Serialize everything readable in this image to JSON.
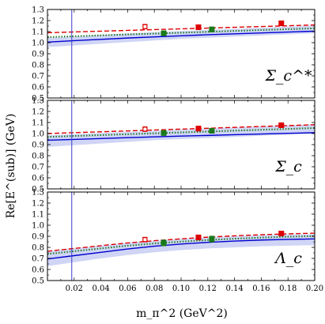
{
  "figure": {
    "ylabel": "Re[E^(sub)] (GeV)",
    "xlabel": "m_π^2 (GeV^2)",
    "colors": {
      "band": "#c8cef5",
      "solid_line": "#0000cc",
      "dashed_line": "#dd0000",
      "dotted_line": "#1a7a1a",
      "open_marker": "#dd0000",
      "red_marker": "#dd0000",
      "green_marker": "#1a7a1a",
      "vline": "#3a3acc"
    }
  },
  "chart_data": [
    {
      "type": "line",
      "panel_label": "Σ_c^*",
      "xlim": [
        0.0,
        0.2
      ],
      "ylim": [
        0.5,
        1.3
      ],
      "x_ticks": [],
      "y_ticks": [
        "0.5",
        "0.6",
        "0.7",
        "0.8",
        "0.9",
        "1.0",
        "1.1",
        "1.2",
        "1.3"
      ],
      "vline_x": 0.0182,
      "band": {
        "x": [
          0.0,
          0.02,
          0.04,
          0.06,
          0.08,
          0.1,
          0.12,
          0.14,
          0.16,
          0.18,
          0.2
        ],
        "lower": [
          0.96,
          0.975,
          0.99,
          1.005,
          1.02,
          1.035,
          1.045,
          1.055,
          1.065,
          1.075,
          1.085
        ],
        "upper": [
          1.045,
          1.055,
          1.07,
          1.085,
          1.095,
          1.105,
          1.115,
          1.125,
          1.135,
          1.145,
          1.155
        ]
      },
      "solid_line": {
        "x": [
          0.0,
          0.02,
          0.04,
          0.06,
          0.08,
          0.1,
          0.12,
          0.14,
          0.16,
          0.18,
          0.2
        ],
        "y": [
          1.005,
          1.018,
          1.03,
          1.042,
          1.052,
          1.062,
          1.072,
          1.08,
          1.088,
          1.096,
          1.104
        ]
      },
      "dashed_line": {
        "x": [
          0.0,
          0.02,
          0.04,
          0.06,
          0.08,
          0.1,
          0.12,
          0.14,
          0.16,
          0.18,
          0.2
        ],
        "y": [
          1.09,
          1.097,
          1.104,
          1.111,
          1.118,
          1.125,
          1.132,
          1.139,
          1.146,
          1.153,
          1.16
        ]
      },
      "dotted_line": {
        "x": [
          0.0,
          0.02,
          0.04,
          0.06,
          0.08,
          0.1,
          0.12,
          0.14,
          0.16,
          0.18,
          0.2
        ],
        "y": [
          1.05,
          1.058,
          1.066,
          1.074,
          1.082,
          1.09,
          1.098,
          1.106,
          1.114,
          1.122,
          1.13
        ]
      },
      "open_points": [
        {
          "x": 0.073,
          "y": 1.145,
          "err": 0.02
        }
      ],
      "red_points": [
        {
          "x": 0.113,
          "y": 1.14,
          "err": 0.02
        },
        {
          "x": 0.175,
          "y": 1.175,
          "err": 0.02
        }
      ],
      "green_points": [
        {
          "x": 0.087,
          "y": 1.085,
          "err": 0.02
        },
        {
          "x": 0.123,
          "y": 1.12,
          "err": 0.02
        }
      ]
    },
    {
      "type": "line",
      "panel_label": "Σ_c",
      "xlim": [
        0.0,
        0.2
      ],
      "ylim": [
        0.5,
        1.3
      ],
      "x_ticks": [],
      "y_ticks": [
        "0.5",
        "0.6",
        "0.7",
        "0.8",
        "0.9",
        "1.0",
        "1.1",
        "1.2",
        "1.3"
      ],
      "vline_x": 0.0182,
      "band": {
        "x": [
          0.0,
          0.02,
          0.04,
          0.06,
          0.08,
          0.1,
          0.12,
          0.14,
          0.16,
          0.18,
          0.2
        ],
        "lower": [
          0.88,
          0.895,
          0.91,
          0.925,
          0.94,
          0.95,
          0.96,
          0.97,
          0.98,
          0.99,
          1.0
        ],
        "upper": [
          0.985,
          0.995,
          1.005,
          1.015,
          1.025,
          1.035,
          1.045,
          1.055,
          1.065,
          1.075,
          1.085
        ]
      },
      "solid_line": {
        "x": [
          0.0,
          0.02,
          0.04,
          0.06,
          0.08,
          0.1,
          0.12,
          0.14,
          0.16,
          0.18,
          0.2
        ],
        "y": [
          0.94,
          0.947,
          0.955,
          0.963,
          0.97,
          0.977,
          0.983,
          0.99,
          0.996,
          1.002,
          1.008
        ]
      },
      "dashed_line": {
        "x": [
          0.0,
          0.02,
          0.04,
          0.06,
          0.08,
          0.1,
          0.12,
          0.14,
          0.16,
          0.18,
          0.2
        ],
        "y": [
          1.0,
          1.008,
          1.016,
          1.024,
          1.032,
          1.04,
          1.048,
          1.056,
          1.064,
          1.072,
          1.08
        ]
      },
      "dotted_line": {
        "x": [
          0.0,
          0.02,
          0.04,
          0.06,
          0.08,
          0.1,
          0.12,
          0.14,
          0.16,
          0.18,
          0.2
        ],
        "y": [
          0.97,
          0.978,
          0.986,
          0.994,
          1.002,
          1.01,
          1.018,
          1.026,
          1.034,
          1.042,
          1.05
        ]
      },
      "open_points": [
        {
          "x": 0.073,
          "y": 1.04,
          "err": 0.02
        }
      ],
      "red_points": [
        {
          "x": 0.113,
          "y": 1.045,
          "err": 0.02
        },
        {
          "x": 0.175,
          "y": 1.075,
          "err": 0.02
        }
      ],
      "green_points": [
        {
          "x": 0.087,
          "y": 1.005,
          "err": 0.02
        },
        {
          "x": 0.123,
          "y": 1.025,
          "err": 0.02
        }
      ]
    },
    {
      "type": "line",
      "panel_label": "Λ_c",
      "xlim": [
        0.0,
        0.2
      ],
      "ylim": [
        0.5,
        1.3
      ],
      "x_ticks": [
        "0.02",
        "0.04",
        "0.06",
        "0.08",
        "0.10",
        "0.12",
        "0.14",
        "0.16",
        "0.18",
        "0.20"
      ],
      "y_ticks": [
        "0.5",
        "0.6",
        "0.7",
        "0.8",
        "0.9",
        "1.0",
        "1.1",
        "1.2",
        "1.3"
      ],
      "vline_x": 0.0182,
      "band": {
        "x": [
          0.0,
          0.02,
          0.04,
          0.06,
          0.08,
          0.1,
          0.12,
          0.14,
          0.16,
          0.18,
          0.2
        ],
        "lower": [
          0.63,
          0.665,
          0.7,
          0.73,
          0.755,
          0.775,
          0.79,
          0.8,
          0.81,
          0.815,
          0.82
        ],
        "upper": [
          0.765,
          0.79,
          0.815,
          0.84,
          0.86,
          0.875,
          0.89,
          0.9,
          0.91,
          0.915,
          0.92
        ]
      },
      "solid_line": {
        "x": [
          0.0,
          0.02,
          0.04,
          0.06,
          0.08,
          0.1,
          0.12,
          0.14,
          0.16,
          0.18,
          0.2
        ],
        "y": [
          0.695,
          0.725,
          0.755,
          0.785,
          0.81,
          0.83,
          0.845,
          0.857,
          0.866,
          0.872,
          0.876
        ]
      },
      "dashed_line": {
        "x": [
          0.0,
          0.02,
          0.04,
          0.06,
          0.08,
          0.1,
          0.12,
          0.14,
          0.16,
          0.18,
          0.2
        ],
        "y": [
          0.765,
          0.79,
          0.815,
          0.84,
          0.86,
          0.877,
          0.892,
          0.904,
          0.914,
          0.922,
          0.928
        ]
      },
      "dotted_line": {
        "x": [
          0.0,
          0.02,
          0.04,
          0.06,
          0.08,
          0.1,
          0.12,
          0.14,
          0.16,
          0.18,
          0.2
        ],
        "y": [
          0.74,
          0.765,
          0.79,
          0.815,
          0.835,
          0.852,
          0.866,
          0.878,
          0.888,
          0.896,
          0.902
        ]
      },
      "open_points": [
        {
          "x": 0.073,
          "y": 0.87,
          "err": 0.02
        }
      ],
      "red_points": [
        {
          "x": 0.113,
          "y": 0.89,
          "err": 0.02
        },
        {
          "x": 0.175,
          "y": 0.925,
          "err": 0.02
        }
      ],
      "green_points": [
        {
          "x": 0.087,
          "y": 0.84,
          "err": 0.025
        },
        {
          "x": 0.123,
          "y": 0.875,
          "err": 0.025
        }
      ]
    }
  ]
}
